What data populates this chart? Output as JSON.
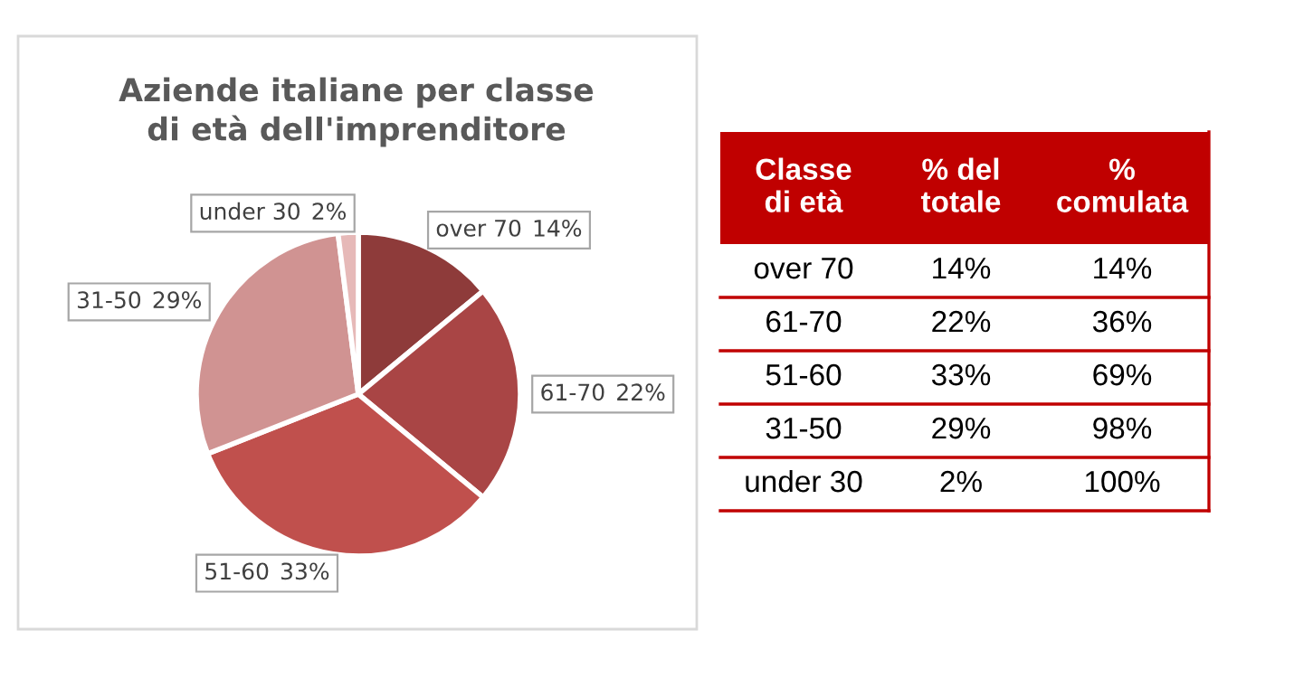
{
  "chart_data": [
    {
      "type": "pie",
      "title": "Aziende italiane per classe di età dell'imprenditore",
      "categories": [
        "over 70",
        "61-70",
        "51-60",
        "31-50",
        "under 30"
      ],
      "values": [
        14,
        22,
        33,
        29,
        2
      ],
      "value_labels": [
        "14%",
        "22%",
        "33%",
        "29%",
        "2%"
      ],
      "colors": [
        "#8e3b3a",
        "#a94545",
        "#c0504d",
        "#d09392",
        "#e6b9b8"
      ]
    },
    {
      "type": "other",
      "categories": [
        "Classe\ndi età",
        "% del\ntotale",
        "%\ncomulata"
      ],
      "annotations": [
        "over 70",
        "14%",
        "14%",
        "61-70",
        "22%",
        "36%",
        "51-60",
        "33%",
        "69%",
        "31-50",
        "29%",
        "98%",
        "under 30",
        "2%",
        "100%"
      ]
    }
  ]
}
